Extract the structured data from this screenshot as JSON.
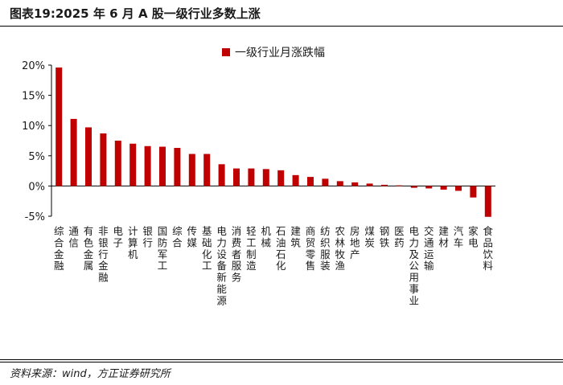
{
  "figure": {
    "title": "图表19:2025 年 6 月 A 股一级行业多数上涨",
    "source": "资料来源：wind，方正证券研究所"
  },
  "chart_data": {
    "type": "bar",
    "legend": {
      "label": "一级行业月涨跌幅",
      "position": "top-right"
    },
    "categories": [
      "综合金融",
      "通信",
      "有色金属",
      "非银行金融",
      "电子",
      "计算机",
      "银行",
      "国防军工",
      "综合",
      "传媒",
      "基础化工",
      "电力设备新能源",
      "消费者服务",
      "轻工制造",
      "机械",
      "石油石化",
      "建筑",
      "商贸零售",
      "纺织服装",
      "农林牧渔",
      "房地产",
      "煤炭",
      "钢铁",
      "医药",
      "电力及公用事业",
      "交通运输",
      "建材",
      "汽车",
      "家电",
      "食品饮料"
    ],
    "values": [
      19.6,
      11.1,
      9.7,
      8.7,
      7.5,
      7.0,
      6.6,
      6.5,
      6.3,
      5.3,
      5.3,
      3.6,
      2.9,
      2.9,
      2.8,
      2.6,
      1.8,
      1.5,
      1.2,
      0.8,
      0.6,
      0.4,
      0.2,
      0.1,
      -0.3,
      -0.4,
      -0.6,
      -0.8,
      -1.9,
      -5.1
    ],
    "yticks": [
      "20%",
      "15%",
      "10%",
      "5%",
      "0%",
      "-5%"
    ],
    "ylim": [
      -5,
      20
    ],
    "bar_color": "#c00000",
    "grid": false
  }
}
